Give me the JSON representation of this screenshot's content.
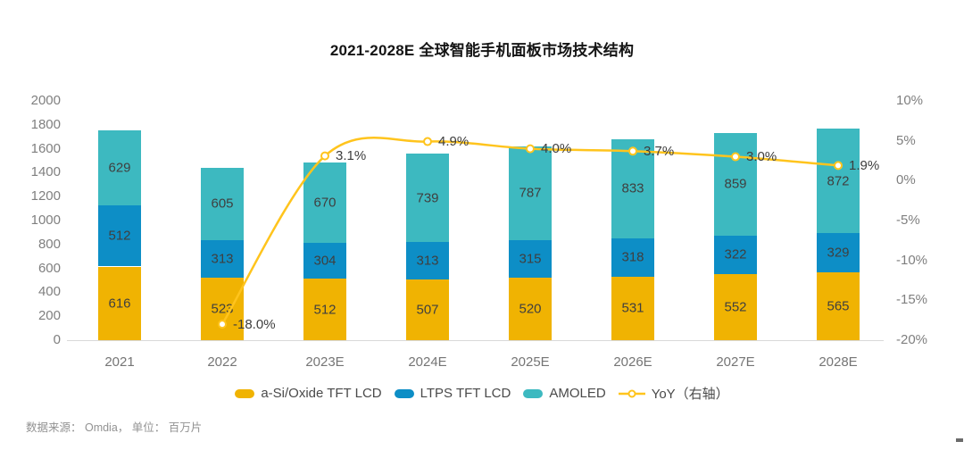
{
  "title": "2021-2028E 全球智能手机面板市场技术结构",
  "source_note": "数据来源： Omdia， 单位： 百万片",
  "colors": {
    "a_si_bar": "#F0B302",
    "ltps_bar": "#0D8EC6",
    "amoled_bar": "#3DB9C0",
    "yoy_line": "#FFC41D",
    "value_label": "#3F3F3F",
    "axis_text": "#7F7F7F",
    "baseline": "#D9D9D9"
  },
  "chart_data": {
    "type": "bar",
    "subtype": "stacked-bars-with-right-axis-line",
    "title": "2021-2028E 全球智能手机面板市场技术结构",
    "categories": [
      "2021",
      "2022",
      "2023E",
      "2024E",
      "2025E",
      "2026E",
      "2027E",
      "2028E"
    ],
    "series": [
      {
        "name": "a-Si/Oxide TFT LCD",
        "kind": "bar",
        "color": "#F0B302",
        "values": [
          616,
          523,
          512,
          507,
          520,
          531,
          552,
          565
        ]
      },
      {
        "name": "LTPS TFT LCD",
        "kind": "bar",
        "color": "#0D8EC6",
        "values": [
          512,
          313,
          304,
          313,
          315,
          318,
          322,
          329
        ]
      },
      {
        "name": "AMOLED",
        "kind": "bar",
        "color": "#3DB9C0",
        "values": [
          629,
          605,
          670,
          739,
          787,
          833,
          859,
          872
        ]
      },
      {
        "name": "YoY（右轴）",
        "kind": "line",
        "axis": "right",
        "color": "#FFC41D",
        "values": [
          null,
          -18.0,
          3.1,
          4.9,
          4.0,
          3.7,
          3.0,
          1.9
        ],
        "point_labels": [
          "",
          "-18.0%",
          "3.1%",
          "4.9%",
          "4.0%",
          "3.7%",
          "3.0%",
          "1.9%"
        ]
      }
    ],
    "left_axis": {
      "min": 0,
      "max": 2000,
      "step": 200,
      "tick_labels": [
        "0",
        "200",
        "400",
        "600",
        "800",
        "1000",
        "1200",
        "1400",
        "1600",
        "1800",
        "2000"
      ]
    },
    "right_axis": {
      "min": -20,
      "max": 10,
      "step": 5,
      "tick_labels": [
        "10%",
        "5%",
        "0%",
        "-5%",
        "-10%",
        "-15%",
        "-20%"
      ]
    },
    "grid": false,
    "legend_position": "bottom"
  }
}
